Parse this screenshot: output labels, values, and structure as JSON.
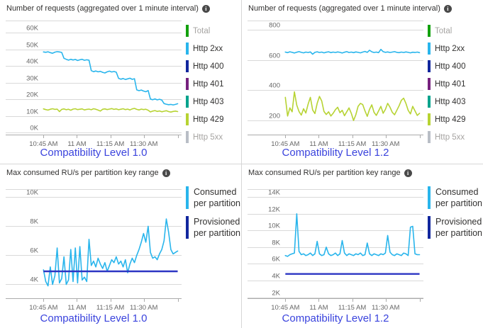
{
  "icons": {
    "info": "i"
  },
  "colors": {
    "cyan": "#29B5EC",
    "lime": "#B7D333",
    "green": "#13A10E",
    "navy": "#12279E",
    "purple": "#76217E",
    "teal": "#00A38C",
    "gray": "#B9BEC6",
    "provisioned_line": "#2C35C3",
    "caption": "#3A43DD",
    "grid": "#D9D9D9",
    "axis": "#ABABAB",
    "title": "#323130",
    "tick": "#666666",
    "dim_text": "#A6A4A2"
  },
  "chart_data": [
    {
      "type": "line",
      "title": "Number of requests (aggregated over 1 minute interval)",
      "caption": "Compatibility Level 1.0",
      "x_tick_labels": [
        "10:45 AM",
        "11 AM",
        "11:15 AM",
        "11:30 AM"
      ],
      "y_ticks": [
        {
          "label": "60K",
          "v": 60
        },
        {
          "label": "50K",
          "v": 50
        },
        {
          "label": "40K",
          "v": 40
        },
        {
          "label": "30K",
          "v": 30
        },
        {
          "label": "20K",
          "v": 20
        },
        {
          "label": "10K",
          "v": 10
        },
        {
          "label": "0K",
          "v": 0
        }
      ],
      "ylim": [
        -1.5,
        67.2
      ],
      "unit": "K requests",
      "series": [
        {
          "name": "Http 2xx",
          "color_key": "cyan",
          "values": [
            48.4,
            48.2,
            48.5,
            48.0,
            47.6,
            48.3,
            48.6,
            48.4,
            48.1,
            44.6,
            44.0,
            43.5,
            44.0,
            43.6,
            43.9,
            43.3,
            43.7,
            44.0,
            43.4,
            43.7,
            43.5,
            37.2,
            36.6,
            37.0,
            36.5,
            36.8,
            36.2,
            35.8,
            36.5,
            36.9,
            36.4,
            36.7,
            36.3,
            32.6,
            32.1,
            32.5,
            31.9,
            32.3,
            32.7,
            32.0,
            32.4,
            25.7,
            25.2,
            25.6,
            25.0,
            24.6,
            25.3,
            20.2,
            19.8,
            20.3,
            19.7,
            20.1,
            19.6,
            17.5,
            17.1,
            16.8,
            17.0,
            16.7,
            17.0,
            17.4
          ]
        },
        {
          "name": "Http 429",
          "color_key": "lime",
          "values": [
            14.3,
            13.9,
            13.6,
            14.1,
            14.4,
            14.0,
            14.2,
            12.7,
            14.0,
            14.3,
            13.8,
            14.1,
            13.5,
            14.2,
            14.4,
            13.9,
            14.1,
            14.3,
            13.7,
            14.0,
            14.2,
            13.8,
            14.4,
            14.1,
            13.6,
            13.0,
            14.1,
            14.3,
            13.9,
            14.2,
            14.5,
            14.0,
            14.3,
            13.8,
            14.1,
            14.4,
            13.9,
            14.2,
            13.7,
            14.3,
            14.6,
            14.0,
            13.7,
            14.2,
            13.9,
            14.1,
            13.5,
            12.5,
            13.0,
            13.3,
            12.8,
            13.1,
            12.6,
            12.9,
            13.2,
            12.7,
            12.4,
            12.8,
            13.0,
            12.7
          ]
        }
      ],
      "legend": [
        {
          "label": "Total",
          "color_key": "green",
          "dim": true
        },
        {
          "label": "Http 2xx",
          "color_key": "cyan",
          "dim": false
        },
        {
          "label": "Http 400",
          "color_key": "navy",
          "dim": false
        },
        {
          "label": "Http 401",
          "color_key": "purple",
          "dim": false
        },
        {
          "label": "Http 403",
          "color_key": "teal",
          "dim": false
        },
        {
          "label": "Http 429",
          "color_key": "lime",
          "dim": false
        },
        {
          "label": "Http 5xx",
          "color_key": "gray",
          "dim": true
        }
      ]
    },
    {
      "type": "line",
      "title": "Number of requests (aggregated over 1 minute interval)",
      "caption": "Compatibility Level 1.2",
      "x_tick_labels": [
        "10:45 AM",
        "11 AM",
        "11:15 AM",
        "11:30 AM"
      ],
      "y_ticks": [
        {
          "label": "800",
          "v": 800
        },
        {
          "label": "600",
          "v": 600
        },
        {
          "label": "400",
          "v": 400
        },
        {
          "label": "200",
          "v": 200
        }
      ],
      "ylim": [
        100,
        861
      ],
      "unit": "requests",
      "series": [
        {
          "name": "Http 2xx",
          "color_key": "cyan",
          "values": [
            652,
            648,
            654,
            650,
            646,
            651,
            655,
            650,
            647,
            652,
            649,
            653,
            638,
            650,
            654,
            649,
            652,
            647,
            651,
            654,
            648,
            652,
            649,
            653,
            650,
            646,
            651,
            655,
            649,
            652,
            648,
            653,
            650,
            647,
            652,
            656,
            650,
            664,
            654,
            649,
            652,
            648,
            670,
            655,
            650,
            653,
            649,
            652,
            655,
            650,
            648,
            652,
            649,
            653,
            650,
            647,
            651,
            649,
            652,
            648
          ]
        },
        {
          "name": "Http 429",
          "color_key": "lime",
          "values": [
            352,
            228,
            282,
            256,
            388,
            300,
            258,
            234,
            276,
            248,
            306,
            352,
            268,
            244,
            312,
            358,
            328,
            258,
            238,
            256,
            228,
            246,
            270,
            286,
            250,
            266,
            230,
            256,
            282,
            246,
            198,
            236,
            292,
            312,
            304,
            262,
            226,
            272,
            302,
            252,
            232,
            262,
            292,
            246,
            272,
            312,
            286,
            252,
            236,
            266,
            296,
            332,
            346,
            312,
            266,
            242,
            292,
            262,
            232,
            246
          ]
        }
      ],
      "legend": [
        {
          "label": "Total",
          "color_key": "green",
          "dim": true
        },
        {
          "label": "Http 2xx",
          "color_key": "cyan",
          "dim": false
        },
        {
          "label": "Http 400",
          "color_key": "navy",
          "dim": false
        },
        {
          "label": "Http 401",
          "color_key": "purple",
          "dim": false
        },
        {
          "label": "Http 403",
          "color_key": "teal",
          "dim": false
        },
        {
          "label": "Http 429",
          "color_key": "lime",
          "dim": false
        },
        {
          "label": "Http 5xx",
          "color_key": "gray",
          "dim": true
        }
      ]
    },
    {
      "type": "line",
      "title": "Max consumed RU/s per partition key range",
      "caption": "Compatibility Level 1.0",
      "x_tick_labels": [
        "10:45 AM",
        "11 AM",
        "11:15 AM",
        "11:30 AM"
      ],
      "y_ticks": [
        {
          "label": "10K",
          "v": 10
        },
        {
          "label": "8K",
          "v": 8
        },
        {
          "label": "6K",
          "v": 6
        },
        {
          "label": "4K",
          "v": 4
        }
      ],
      "ylim": [
        3.0,
        10.55
      ],
      "unit": "K RU/s",
      "series": [
        {
          "name": "Consumed per partition",
          "color_key": "cyan",
          "values": [
            5.0,
            4.2,
            3.9,
            5.2,
            4.0,
            4.6,
            6.5,
            4.1,
            4.4,
            5.9,
            4.0,
            4.3,
            6.4,
            4.2,
            6.5,
            4.1,
            6.6,
            4.3,
            4.5,
            4.2,
            7.1,
            5.3,
            5.6,
            5.2,
            5.8,
            5.4,
            5.1,
            5.5,
            4.9,
            5.3,
            5.7,
            5.5,
            5.9,
            5.4,
            5.6,
            5.2,
            5.7,
            4.8,
            5.4,
            5.8,
            5.5,
            6.0,
            6.4,
            6.9,
            7.5,
            6.9,
            8.0,
            6.2,
            5.8,
            5.9,
            5.7,
            6.1,
            6.4,
            7.0,
            8.5,
            7.6,
            6.4,
            6.1,
            6.2,
            6.3
          ]
        },
        {
          "name": "Provisioned per partition",
          "color_key": "provisioned_line",
          "flat": 4.9
        }
      ],
      "legend": [
        {
          "label": "Consumed per partition",
          "color_key": "cyan",
          "dim": false
        },
        {
          "label": "Provisioned per partition",
          "color_key": "navy",
          "dim": false
        }
      ]
    },
    {
      "type": "line",
      "title": "Max consumed RU/s per partition key range",
      "caption": "Compatibility Level 1.2",
      "x_tick_labels": [
        "10:45 AM",
        "11 AM",
        "11:15 AM",
        "11:30 AM"
      ],
      "y_ticks": [
        {
          "label": "14K",
          "v": 14
        },
        {
          "label": "12K",
          "v": 12
        },
        {
          "label": "10K",
          "v": 10
        },
        {
          "label": "8K",
          "v": 8
        },
        {
          "label": "6K",
          "v": 6
        },
        {
          "label": "4K",
          "v": 4
        },
        {
          "label": "2K",
          "v": 2
        }
      ],
      "ylim": [
        1.8,
        14.95
      ],
      "unit": "K RU/s",
      "series": [
        {
          "name": "Consumed per partition",
          "color_key": "cyan",
          "values": [
            7.0,
            6.9,
            7.1,
            7.2,
            7.3,
            12.0,
            7.5,
            7.1,
            7.2,
            7.0,
            7.1,
            7.3,
            7.0,
            7.2,
            8.7,
            7.2,
            7.0,
            7.1,
            8.0,
            7.2,
            7.0,
            7.1,
            7.3,
            7.0,
            7.2,
            8.8,
            7.3,
            7.0,
            7.2,
            7.1,
            7.0,
            7.2,
            7.1,
            7.3,
            7.0,
            7.1,
            8.5,
            7.2,
            7.0,
            7.2,
            7.1,
            7.0,
            7.2,
            7.1,
            7.3,
            9.4,
            7.4,
            7.1,
            7.0,
            7.2,
            7.1,
            7.0,
            7.3,
            7.2,
            7.0,
            10.4,
            10.5,
            7.2,
            7.1,
            7.1
          ]
        },
        {
          "name": "Provisioned per partition",
          "color_key": "provisioned_line",
          "flat": 4.8
        }
      ],
      "legend": [
        {
          "label": "Consumed per partition",
          "color_key": "cyan",
          "dim": false
        },
        {
          "label": "Provisioned per partition",
          "color_key": "navy",
          "dim": false
        }
      ]
    }
  ]
}
